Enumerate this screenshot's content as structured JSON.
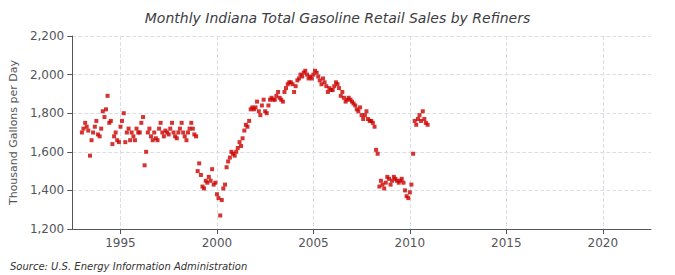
{
  "chart_data": {
    "type": "scatter",
    "title": "Monthly Indiana Total Gasoline Retail Sales by Refiners",
    "ylabel": "Thousand Gallons per Day",
    "annotation": "Source: U.S. Energy Information Administration",
    "color": "#cc0000",
    "marker": "square",
    "grid": true,
    "xlim": [
      1992.5,
      2022.5
    ],
    "xticks": [
      1995,
      2000,
      2005,
      2010,
      2015,
      2020
    ],
    "ylim": [
      1200,
      2200
    ],
    "yticks": [
      {
        "value": 1200,
        "label": "1,200"
      },
      {
        "value": 1400,
        "label": "1,400"
      },
      {
        "value": 1600,
        "label": "1,600"
      },
      {
        "value": 1800,
        "label": "1,800"
      },
      {
        "value": 2000,
        "label": "2,000"
      },
      {
        "value": 2200,
        "label": "2,200"
      }
    ],
    "x": [
      1993.0,
      1993.08,
      1993.17,
      1993.25,
      1993.33,
      1993.42,
      1993.5,
      1993.58,
      1993.67,
      1993.75,
      1993.83,
      1993.92,
      1994.0,
      1994.08,
      1994.17,
      1994.25,
      1994.33,
      1994.42,
      1994.5,
      1994.58,
      1994.67,
      1994.75,
      1994.83,
      1994.92,
      1995.0,
      1995.08,
      1995.17,
      1995.25,
      1995.33,
      1995.42,
      1995.5,
      1995.58,
      1995.67,
      1995.75,
      1995.83,
      1995.92,
      1996.0,
      1996.08,
      1996.17,
      1996.25,
      1996.33,
      1996.42,
      1996.5,
      1996.58,
      1996.67,
      1996.75,
      1996.83,
      1996.92,
      1997.0,
      1997.08,
      1997.17,
      1997.25,
      1997.33,
      1997.42,
      1997.5,
      1997.58,
      1997.67,
      1997.75,
      1997.83,
      1997.92,
      1998.0,
      1998.08,
      1998.17,
      1998.25,
      1998.33,
      1998.42,
      1998.5,
      1998.58,
      1998.67,
      1998.75,
      1998.83,
      1998.92,
      1999.0,
      1999.08,
      1999.17,
      1999.25,
      1999.33,
      1999.42,
      1999.5,
      1999.58,
      1999.67,
      1999.75,
      1999.83,
      1999.92,
      2000.0,
      2000.08,
      2000.17,
      2000.25,
      2000.33,
      2000.42,
      2000.5,
      2000.58,
      2000.67,
      2000.75,
      2000.83,
      2000.92,
      2001.0,
      2001.08,
      2001.17,
      2001.25,
      2001.33,
      2001.42,
      2001.5,
      2001.58,
      2001.67,
      2001.75,
      2001.83,
      2001.92,
      2002.0,
      2002.08,
      2002.17,
      2002.25,
      2002.33,
      2002.42,
      2002.5,
      2002.58,
      2002.67,
      2002.75,
      2002.83,
      2002.92,
      2003.0,
      2003.08,
      2003.17,
      2003.25,
      2003.33,
      2003.42,
      2003.5,
      2003.58,
      2003.67,
      2003.75,
      2003.83,
      2003.92,
      2004.0,
      2004.08,
      2004.17,
      2004.25,
      2004.33,
      2004.42,
      2004.5,
      2004.58,
      2004.67,
      2004.75,
      2004.83,
      2004.92,
      2005.0,
      2005.08,
      2005.17,
      2005.25,
      2005.33,
      2005.42,
      2005.5,
      2005.58,
      2005.67,
      2005.75,
      2005.83,
      2005.92,
      2006.0,
      2006.08,
      2006.17,
      2006.25,
      2006.33,
      2006.42,
      2006.5,
      2006.58,
      2006.67,
      2006.75,
      2006.83,
      2006.92,
      2007.0,
      2007.08,
      2007.17,
      2007.25,
      2007.33,
      2007.42,
      2007.5,
      2007.58,
      2007.67,
      2007.75,
      2007.83,
      2007.92,
      2008.0,
      2008.08,
      2008.17,
      2008.25,
      2008.33,
      2008.42,
      2008.5,
      2008.58,
      2008.67,
      2008.75,
      2008.83,
      2008.92,
      2009.0,
      2009.08,
      2009.17,
      2009.25,
      2009.33,
      2009.42,
      2009.5,
      2009.58,
      2009.67,
      2009.75,
      2009.83,
      2009.92,
      2010.0,
      2010.08,
      2010.17,
      2010.25,
      2010.33,
      2010.42,
      2010.5,
      2010.58,
      2010.67,
      2010.75,
      2010.83,
      2010.92
    ],
    "values": [
      1700,
      1720,
      1750,
      1730,
      1710,
      1580,
      1660,
      1700,
      1730,
      1760,
      1690,
      1680,
      1720,
      1810,
      1780,
      1820,
      1890,
      1750,
      1760,
      1640,
      1680,
      1700,
      1660,
      1650,
      1730,
      1760,
      1800,
      1650,
      1700,
      1720,
      1660,
      1700,
      1680,
      1660,
      1720,
      1700,
      1700,
      1750,
      1780,
      1530,
      1600,
      1700,
      1720,
      1680,
      1660,
      1700,
      1670,
      1660,
      1720,
      1750,
      1700,
      1680,
      1710,
      1700,
      1690,
      1720,
      1750,
      1700,
      1680,
      1670,
      1700,
      1720,
      1750,
      1700,
      1680,
      1660,
      1700,
      1720,
      1750,
      1720,
      1690,
      1680,
      1500,
      1540,
      1480,
      1420,
      1410,
      1450,
      1440,
      1470,
      1450,
      1510,
      1430,
      1440,
      1380,
      1360,
      1270,
      1350,
      1410,
      1430,
      1520,
      1550,
      1570,
      1600,
      1590,
      1580,
      1600,
      1620,
      1650,
      1630,
      1670,
      1710,
      1740,
      1730,
      1760,
      1820,
      1830,
      1820,
      1830,
      1860,
      1810,
      1790,
      1840,
      1870,
      1810,
      1800,
      1840,
      1870,
      1880,
      1870,
      1870,
      1890,
      1910,
      1880,
      1870,
      1860,
      1910,
      1930,
      1950,
      1960,
      1960,
      1950,
      1910,
      1940,
      1970,
      1980,
      2000,
      1990,
      2010,
      2020,
      2000,
      1980,
      1990,
      1980,
      2000,
      2020,
      2010,
      1990,
      1970,
      1950,
      1980,
      1960,
      1940,
      1910,
      1930,
      1920,
      1920,
      1940,
      1960,
      1950,
      1930,
      1890,
      1910,
      1880,
      1860,
      1870,
      1880,
      1870,
      1860,
      1850,
      1840,
      1820,
      1810,
      1830,
      1790,
      1770,
      1790,
      1810,
      1770,
      1760,
      1760,
      1750,
      1730,
      1610,
      1590,
      1420,
      1450,
      1430,
      1410,
      1440,
      1470,
      1460,
      1430,
      1450,
      1470,
      1460,
      1450,
      1440,
      1450,
      1460,
      1440,
      1400,
      1370,
      1360,
      1390,
      1430,
      1590,
      1760,
      1740,
      1770,
      1790,
      1760,
      1810,
      1770,
      1750,
      1740
    ]
  }
}
